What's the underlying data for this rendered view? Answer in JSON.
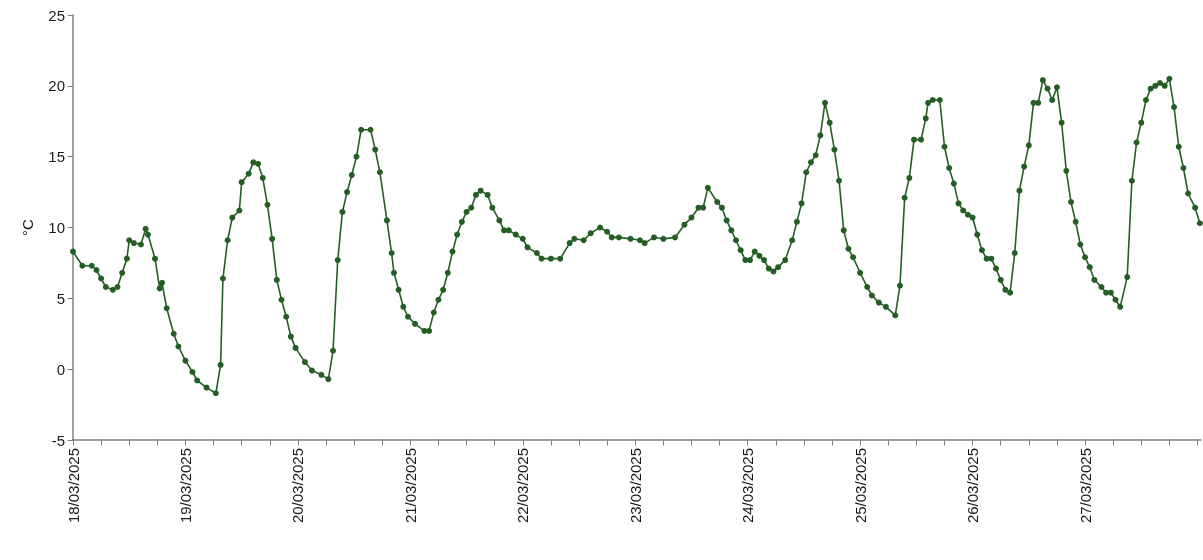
{
  "chart_data": {
    "type": "line",
    "ylabel": "°C",
    "marker": "circle",
    "line_style": "solid",
    "xlim": [
      "2025-03-18T00:00",
      "2025-03-28T00:45"
    ],
    "ylim": [
      -5,
      25
    ],
    "yticks": [
      -5,
      0,
      5,
      10,
      15,
      20,
      25
    ],
    "xticks": [
      {
        "value": "2025-03-18T00:00",
        "label": "18/03/2025"
      },
      {
        "value": "2025-03-18T06:00",
        "label": null
      },
      {
        "value": "2025-03-18T12:00",
        "label": null
      },
      {
        "value": "2025-03-18T18:00",
        "label": null
      },
      {
        "value": "2025-03-19T00:00",
        "label": "19/03/2025"
      },
      {
        "value": "2025-03-19T06:00",
        "label": null
      },
      {
        "value": "2025-03-19T12:00",
        "label": null
      },
      {
        "value": "2025-03-19T18:00",
        "label": null
      },
      {
        "value": "2025-03-20T00:00",
        "label": "20/03/2025"
      },
      {
        "value": "2025-03-20T06:00",
        "label": null
      },
      {
        "value": "2025-03-20T12:00",
        "label": null
      },
      {
        "value": "2025-03-20T18:00",
        "label": null
      },
      {
        "value": "2025-03-21T00:00",
        "label": "21/03/2025"
      },
      {
        "value": "2025-03-21T06:00",
        "label": null
      },
      {
        "value": "2025-03-21T12:00",
        "label": null
      },
      {
        "value": "2025-03-21T18:00",
        "label": null
      },
      {
        "value": "2025-03-22T00:00",
        "label": "22/03/2025"
      },
      {
        "value": "2025-03-22T06:00",
        "label": null
      },
      {
        "value": "2025-03-22T12:00",
        "label": null
      },
      {
        "value": "2025-03-22T18:00",
        "label": null
      },
      {
        "value": "2025-03-23T00:00",
        "label": "23/03/2025"
      },
      {
        "value": "2025-03-23T06:00",
        "label": null
      },
      {
        "value": "2025-03-23T12:00",
        "label": null
      },
      {
        "value": "2025-03-23T18:00",
        "label": null
      },
      {
        "value": "2025-03-24T00:00",
        "label": "24/03/2025"
      },
      {
        "value": "2025-03-24T06:00",
        "label": null
      },
      {
        "value": "2025-03-24T12:00",
        "label": null
      },
      {
        "value": "2025-03-24T18:00",
        "label": null
      },
      {
        "value": "2025-03-25T00:00",
        "label": "25/03/2025"
      },
      {
        "value": "2025-03-25T06:00",
        "label": null
      },
      {
        "value": "2025-03-25T12:00",
        "label": null
      },
      {
        "value": "2025-03-25T18:00",
        "label": null
      },
      {
        "value": "2025-03-26T00:00",
        "label": "26/03/2025"
      },
      {
        "value": "2025-03-26T06:00",
        "label": null
      },
      {
        "value": "2025-03-26T12:00",
        "label": null
      },
      {
        "value": "2025-03-26T18:00",
        "label": null
      },
      {
        "value": "2025-03-27T00:00",
        "label": "27/03/2025"
      },
      {
        "value": "2025-03-27T06:00",
        "label": null
      },
      {
        "value": "2025-03-27T12:00",
        "label": null
      },
      {
        "value": "2025-03-27T18:00",
        "label": null
      },
      {
        "value": "2025-03-28T00:00",
        "label": null
      }
    ],
    "x": [
      "2025-03-18T00:00",
      "2025-03-18T02:00",
      "2025-03-18T04:00",
      "2025-03-18T05:00",
      "2025-03-18T06:00",
      "2025-03-18T07:00",
      "2025-03-18T08:30",
      "2025-03-18T09:30",
      "2025-03-18T10:30",
      "2025-03-18T11:30",
      "2025-03-18T12:00",
      "2025-03-18T13:00",
      "2025-03-18T14:30",
      "2025-03-18T15:30",
      "2025-03-18T16:00",
      "2025-03-18T17:30",
      "2025-03-18T18:30",
      "2025-03-18T19:00",
      "2025-03-18T20:00",
      "2025-03-18T21:30",
      "2025-03-18T22:30",
      "2025-03-19T00:00",
      "2025-03-19T01:30",
      "2025-03-19T02:30",
      "2025-03-19T04:30",
      "2025-03-19T06:30",
      "2025-03-19T07:30",
      "2025-03-19T08:00",
      "2025-03-19T09:00",
      "2025-03-19T10:00",
      "2025-03-19T11:30",
      "2025-03-19T12:00",
      "2025-03-19T13:30",
      "2025-03-19T14:30",
      "2025-03-19T15:30",
      "2025-03-19T16:30",
      "2025-03-19T17:30",
      "2025-03-19T18:30",
      "2025-03-19T19:30",
      "2025-03-19T20:30",
      "2025-03-19T21:30",
      "2025-03-19T22:30",
      "2025-03-19T23:30",
      "2025-03-20T01:30",
      "2025-03-20T03:00",
      "2025-03-20T05:00",
      "2025-03-20T06:30",
      "2025-03-20T07:30",
      "2025-03-20T08:30",
      "2025-03-20T09:30",
      "2025-03-20T10:30",
      "2025-03-20T11:30",
      "2025-03-20T12:30",
      "2025-03-20T13:30",
      "2025-03-20T15:30",
      "2025-03-20T16:30",
      "2025-03-20T17:30",
      "2025-03-20T19:00",
      "2025-03-20T20:00",
      "2025-03-20T20:30",
      "2025-03-20T21:30",
      "2025-03-20T22:30",
      "2025-03-20T23:30",
      "2025-03-21T01:00",
      "2025-03-21T03:00",
      "2025-03-21T04:00",
      "2025-03-21T05:00",
      "2025-03-21T06:00",
      "2025-03-21T07:00",
      "2025-03-21T08:00",
      "2025-03-21T09:00",
      "2025-03-21T10:00",
      "2025-03-21T11:00",
      "2025-03-21T12:00",
      "2025-03-21T13:00",
      "2025-03-21T14:00",
      "2025-03-21T15:00",
      "2025-03-21T16:30",
      "2025-03-21T17:30",
      "2025-03-21T19:00",
      "2025-03-21T20:00",
      "2025-03-21T21:00",
      "2025-03-21T22:30",
      "2025-03-22T00:00",
      "2025-03-22T01:00",
      "2025-03-22T03:00",
      "2025-03-22T04:00",
      "2025-03-22T06:00",
      "2025-03-22T08:00",
      "2025-03-22T10:00",
      "2025-03-22T11:00",
      "2025-03-22T13:00",
      "2025-03-22T14:30",
      "2025-03-22T16:30",
      "2025-03-22T18:00",
      "2025-03-22T19:00",
      "2025-03-22T20:30",
      "2025-03-22T23:00",
      "2025-03-23T01:00",
      "2025-03-23T02:00",
      "2025-03-23T04:00",
      "2025-03-23T06:00",
      "2025-03-23T08:30",
      "2025-03-23T10:30",
      "2025-03-23T12:00",
      "2025-03-23T13:30",
      "2025-03-23T14:30",
      "2025-03-23T15:30",
      "2025-03-23T17:30",
      "2025-03-23T18:30",
      "2025-03-23T19:30",
      "2025-03-23T20:30",
      "2025-03-23T21:30",
      "2025-03-23T22:30",
      "2025-03-23T23:30",
      "2025-03-24T00:30",
      "2025-03-24T01:30",
      "2025-03-24T02:30",
      "2025-03-24T03:30",
      "2025-03-24T04:30",
      "2025-03-24T05:30",
      "2025-03-24T06:30",
      "2025-03-24T08:00",
      "2025-03-24T09:30",
      "2025-03-24T10:30",
      "2025-03-24T11:30",
      "2025-03-24T12:30",
      "2025-03-24T13:30",
      "2025-03-24T14:30",
      "2025-03-24T15:30",
      "2025-03-24T16:30",
      "2025-03-24T17:30",
      "2025-03-24T18:30",
      "2025-03-24T19:30",
      "2025-03-24T20:30",
      "2025-03-24T21:30",
      "2025-03-24T22:30",
      "2025-03-25T00:00",
      "2025-03-25T01:30",
      "2025-03-25T02:30",
      "2025-03-25T04:00",
      "2025-03-25T05:30",
      "2025-03-25T07:30",
      "2025-03-25T08:30",
      "2025-03-25T09:30",
      "2025-03-25T10:30",
      "2025-03-25T11:30",
      "2025-03-25T13:00",
      "2025-03-25T14:00",
      "2025-03-25T14:30",
      "2025-03-25T15:30",
      "2025-03-25T17:00",
      "2025-03-25T18:00",
      "2025-03-25T19:00",
      "2025-03-25T20:00",
      "2025-03-25T21:00",
      "2025-03-25T22:00",
      "2025-03-25T23:00",
      "2025-03-26T00:00",
      "2025-03-26T01:00",
      "2025-03-26T02:00",
      "2025-03-26T03:00",
      "2025-03-26T04:00",
      "2025-03-26T05:00",
      "2025-03-26T06:00",
      "2025-03-26T07:00",
      "2025-03-26T08:00",
      "2025-03-26T09:00",
      "2025-03-26T10:00",
      "2025-03-26T11:00",
      "2025-03-26T12:00",
      "2025-03-26T13:00",
      "2025-03-26T14:00",
      "2025-03-26T15:00",
      "2025-03-26T16:00",
      "2025-03-26T17:00",
      "2025-03-26T18:00",
      "2025-03-26T19:00",
      "2025-03-26T20:00",
      "2025-03-26T21:00",
      "2025-03-26T22:00",
      "2025-03-26T23:00",
      "2025-03-27T00:00",
      "2025-03-27T01:00",
      "2025-03-27T02:00",
      "2025-03-27T03:30",
      "2025-03-27T04:30",
      "2025-03-27T05:30",
      "2025-03-27T06:30",
      "2025-03-27T07:30",
      "2025-03-27T09:00",
      "2025-03-27T10:00",
      "2025-03-27T11:00",
      "2025-03-27T12:00",
      "2025-03-27T13:00",
      "2025-03-27T14:00",
      "2025-03-27T15:00",
      "2025-03-27T16:00",
      "2025-03-27T17:00",
      "2025-03-27T18:00",
      "2025-03-27T19:00",
      "2025-03-27T20:00",
      "2025-03-27T21:00",
      "2025-03-27T22:00",
      "2025-03-27T23:30",
      "2025-03-28T00:30"
    ],
    "series": [
      {
        "color": "#245e24",
        "values": [
          8.3,
          7.3,
          7.3,
          7.0,
          6.4,
          5.8,
          5.6,
          5.8,
          6.8,
          7.8,
          9.1,
          8.9,
          8.8,
          9.9,
          9.5,
          7.8,
          5.7,
          6.1,
          4.3,
          2.5,
          1.6,
          0.6,
          -0.2,
          -0.8,
          -1.3,
          -1.7,
          0.3,
          6.4,
          9.1,
          10.7,
          11.2,
          13.2,
          13.8,
          14.6,
          14.5,
          13.5,
          11.6,
          9.2,
          6.3,
          4.9,
          3.7,
          2.3,
          1.5,
          0.5,
          -0.1,
          -0.4,
          -0.7,
          1.3,
          7.7,
          11.1,
          12.5,
          13.7,
          15.0,
          16.9,
          16.9,
          15.5,
          13.9,
          10.5,
          8.2,
          6.8,
          5.6,
          4.4,
          3.7,
          3.2,
          2.7,
          2.7,
          4.0,
          4.9,
          5.6,
          6.8,
          8.3,
          9.5,
          10.4,
          11.1,
          11.4,
          12.3,
          12.6,
          12.3,
          11.4,
          10.5,
          9.8,
          9.8,
          9.5,
          9.2,
          8.6,
          8.2,
          7.8,
          7.8,
          7.8,
          8.9,
          9.2,
          9.1,
          9.6,
          10.0,
          9.7,
          9.3,
          9.3,
          9.2,
          9.1,
          8.9,
          9.3,
          9.2,
          9.3,
          10.2,
          10.7,
          11.4,
          11.4,
          12.8,
          11.8,
          11.4,
          10.5,
          9.8,
          9.1,
          8.4,
          7.7,
          7.7,
          8.3,
          8.0,
          7.7,
          7.1,
          6.9,
          7.2,
          7.7,
          9.1,
          10.4,
          11.7,
          13.9,
          14.6,
          15.1,
          16.5,
          18.8,
          17.4,
          15.5,
          13.3,
          9.8,
          8.5,
          7.9,
          6.8,
          5.8,
          5.2,
          4.7,
          4.4,
          3.8,
          5.9,
          12.1,
          13.5,
          16.2,
          16.2,
          17.7,
          18.8,
          19.0,
          19.0,
          15.7,
          14.2,
          13.1,
          11.7,
          11.2,
          10.9,
          10.7,
          9.5,
          8.4,
          7.8,
          7.8,
          7.1,
          6.3,
          5.6,
          5.4,
          8.2,
          12.6,
          14.3,
          15.8,
          18.8,
          18.8,
          20.4,
          19.8,
          19.0,
          19.9,
          17.4,
          14.0,
          11.8,
          10.4,
          8.8,
          7.9,
          7.2,
          6.3,
          5.8,
          5.4,
          5.4,
          4.9,
          4.4,
          6.5,
          13.3,
          16.0,
          17.4,
          19.0,
          19.8,
          20.0,
          20.2,
          20.0,
          20.5,
          18.5,
          15.7,
          14.2,
          12.4,
          11.4,
          10.3
        ]
      }
    ]
  }
}
